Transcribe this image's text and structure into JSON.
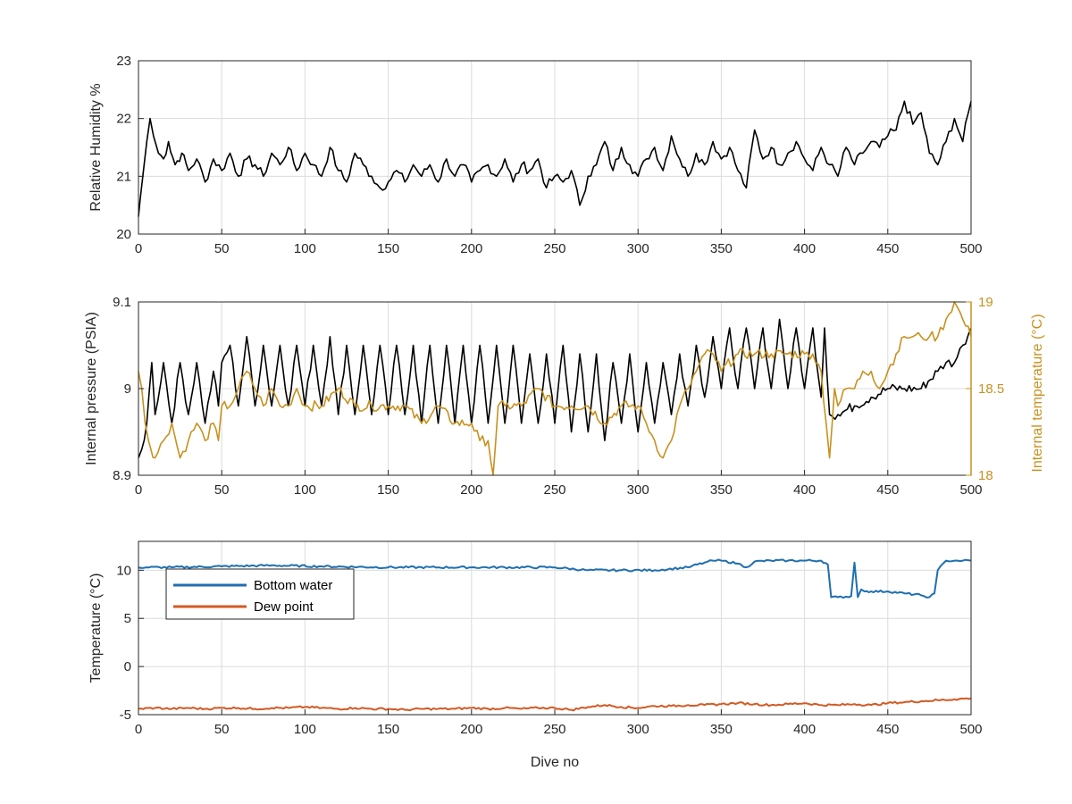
{
  "chart_data": [
    {
      "type": "line",
      "ylabel": "Relative Humidity %",
      "xlim": [
        0,
        500
      ],
      "ylim": [
        20,
        23
      ],
      "xticks": [
        0,
        50,
        100,
        150,
        200,
        250,
        300,
        350,
        400,
        450,
        500
      ],
      "yticks": [
        20,
        21,
        22,
        23
      ],
      "grid": true,
      "series": [
        {
          "color": "#000000",
          "x": [
            0,
            1,
            3,
            5,
            7,
            9,
            12,
            15,
            18,
            22,
            26,
            30,
            35,
            40,
            45,
            50,
            55,
            60,
            65,
            70,
            75,
            80,
            85,
            90,
            95,
            100,
            105,
            110,
            115,
            120,
            125,
            130,
            135,
            140,
            145,
            150,
            155,
            160,
            165,
            170,
            175,
            180,
            185,
            190,
            195,
            200,
            205,
            210,
            215,
            220,
            225,
            230,
            235,
            240,
            245,
            250,
            255,
            260,
            265,
            270,
            275,
            280,
            285,
            290,
            295,
            300,
            305,
            310,
            315,
            320,
            325,
            330,
            335,
            340,
            345,
            350,
            355,
            360,
            365,
            370,
            375,
            380,
            385,
            390,
            395,
            400,
            405,
            410,
            415,
            420,
            425,
            430,
            435,
            440,
            445,
            450,
            455,
            460,
            465,
            470,
            475,
            480,
            485,
            490,
            495,
            500
          ],
          "y": [
            20.3,
            20.6,
            21.1,
            21.6,
            22.0,
            21.7,
            21.4,
            21.3,
            21.6,
            21.2,
            21.4,
            21.1,
            21.3,
            20.9,
            21.3,
            21.1,
            21.4,
            21.0,
            21.3,
            21.2,
            21.0,
            21.4,
            21.2,
            21.5,
            21.1,
            21.4,
            21.2,
            21.0,
            21.5,
            21.1,
            20.9,
            21.4,
            21.2,
            21.0,
            20.8,
            20.9,
            21.1,
            20.9,
            21.2,
            21.0,
            21.2,
            20.9,
            21.3,
            21.0,
            21.2,
            20.9,
            21.1,
            21.2,
            21.0,
            21.3,
            20.9,
            21.2,
            21.1,
            21.3,
            20.8,
            21.0,
            20.9,
            21.1,
            20.5,
            21.0,
            21.2,
            21.6,
            21.1,
            21.5,
            21.2,
            21.0,
            21.3,
            21.5,
            21.1,
            21.7,
            21.3,
            21.0,
            21.4,
            21.2,
            21.6,
            21.3,
            21.5,
            21.1,
            20.8,
            21.8,
            21.3,
            21.5,
            21.2,
            21.4,
            21.6,
            21.3,
            21.1,
            21.5,
            21.2,
            21.0,
            21.5,
            21.2,
            21.4,
            21.6,
            21.5,
            21.7,
            21.8,
            22.3,
            21.9,
            22.1,
            21.4,
            21.2,
            21.6,
            22.0,
            21.6,
            22.3
          ]
        }
      ]
    },
    {
      "type": "line",
      "ylabel": "Internal pressure (PSIA)",
      "y2label": "Internal temperature (°C)",
      "xlim": [
        0,
        500
      ],
      "ylim": [
        8.9,
        9.1
      ],
      "y2lim": [
        18,
        19
      ],
      "xticks": [
        0,
        50,
        100,
        150,
        200,
        250,
        300,
        350,
        400,
        450,
        500
      ],
      "yticks": [
        "8.9",
        "9",
        "9.1"
      ],
      "y2ticks": [
        "18",
        "18.5",
        "19"
      ],
      "grid": true,
      "series": [
        {
          "axis": "left",
          "color": "#000000",
          "x": [
            0,
            2,
            5,
            8,
            10,
            15,
            20,
            25,
            30,
            35,
            40,
            45,
            48,
            50,
            55,
            60,
            65,
            70,
            75,
            80,
            85,
            90,
            95,
            100,
            105,
            110,
            115,
            120,
            125,
            130,
            135,
            140,
            145,
            150,
            155,
            160,
            165,
            170,
            175,
            180,
            185,
            190,
            195,
            200,
            205,
            210,
            215,
            220,
            225,
            230,
            235,
            240,
            245,
            250,
            255,
            260,
            265,
            270,
            275,
            280,
            285,
            290,
            295,
            300,
            305,
            310,
            315,
            320,
            325,
            330,
            335,
            340,
            345,
            350,
            355,
            360,
            365,
            370,
            375,
            380,
            385,
            390,
            395,
            400,
            405,
            410,
            412,
            415,
            420,
            430,
            440,
            450,
            460,
            470,
            480,
            485,
            490,
            495,
            500
          ],
          "y": [
            8.92,
            8.93,
            8.96,
            9.03,
            8.97,
            9.03,
            8.96,
            9.03,
            8.97,
            9.03,
            8.96,
            9.02,
            8.98,
            9.03,
            9.05,
            8.98,
            9.06,
            8.98,
            9.05,
            8.98,
            9.05,
            8.98,
            9.05,
            8.98,
            9.05,
            8.98,
            9.06,
            8.97,
            9.05,
            8.97,
            9.05,
            8.97,
            9.05,
            8.97,
            9.05,
            8.97,
            9.05,
            8.96,
            9.05,
            8.96,
            9.05,
            8.96,
            9.05,
            8.96,
            9.05,
            8.96,
            9.05,
            8.96,
            9.05,
            8.96,
            9.04,
            8.96,
            9.04,
            8.96,
            9.05,
            8.95,
            9.04,
            8.95,
            9.04,
            8.94,
            9.03,
            8.96,
            9.04,
            8.95,
            9.03,
            8.96,
            9.03,
            8.97,
            9.04,
            8.98,
            9.05,
            8.99,
            9.06,
            9.0,
            9.07,
            9.0,
            9.07,
            9.0,
            9.07,
            9.0,
            9.08,
            9.0,
            9.07,
            9.0,
            9.07,
            8.99,
            9.07,
            8.97,
            8.97,
            8.98,
            8.99,
            9.0,
            9.0,
            9.0,
            9.02,
            9.03,
            9.03,
            9.05,
            9.07
          ]
        },
        {
          "axis": "right",
          "color": "#c8911f",
          "x": [
            0,
            2,
            4,
            6,
            10,
            15,
            20,
            25,
            30,
            35,
            40,
            45,
            48,
            50,
            55,
            60,
            65,
            70,
            75,
            80,
            85,
            90,
            95,
            100,
            110,
            120,
            130,
            140,
            150,
            160,
            170,
            180,
            190,
            200,
            205,
            210,
            213,
            216,
            220,
            230,
            240,
            250,
            260,
            270,
            280,
            290,
            300,
            305,
            310,
            315,
            320,
            325,
            330,
            335,
            340,
            345,
            350,
            360,
            370,
            380,
            390,
            400,
            405,
            410,
            413,
            415,
            418,
            420,
            425,
            430,
            435,
            440,
            445,
            450,
            455,
            460,
            465,
            470,
            475,
            480,
            485,
            490,
            495,
            500
          ],
          "y": [
            18.6,
            18.5,
            18.3,
            18.2,
            18.1,
            18.2,
            18.3,
            18.1,
            18.2,
            18.3,
            18.2,
            18.3,
            18.2,
            18.4,
            18.4,
            18.5,
            18.6,
            18.5,
            18.4,
            18.5,
            18.4,
            18.4,
            18.5,
            18.4,
            18.4,
            18.5,
            18.4,
            18.4,
            18.4,
            18.4,
            18.3,
            18.4,
            18.3,
            18.3,
            18.2,
            18.2,
            18.0,
            18.4,
            18.4,
            18.4,
            18.5,
            18.4,
            18.4,
            18.4,
            18.3,
            18.4,
            18.4,
            18.3,
            18.2,
            18.1,
            18.2,
            18.4,
            18.5,
            18.6,
            18.7,
            18.7,
            18.6,
            18.7,
            18.7,
            18.7,
            18.7,
            18.7,
            18.7,
            18.6,
            18.3,
            18.1,
            18.5,
            18.4,
            18.5,
            18.5,
            18.6,
            18.6,
            18.5,
            18.6,
            18.7,
            18.8,
            18.8,
            18.8,
            18.8,
            18.8,
            18.9,
            19.0,
            18.9,
            18.8
          ]
        }
      ]
    },
    {
      "type": "line",
      "xlabel": "Dive no",
      "ylabel": "Temperature (°C)",
      "xlim": [
        0,
        500
      ],
      "ylim": [
        -5,
        13
      ],
      "xticks": [
        0,
        50,
        100,
        150,
        200,
        250,
        300,
        350,
        400,
        450,
        500
      ],
      "yticks": [
        "-5",
        "0",
        "5",
        "10"
      ],
      "grid": true,
      "legend": "top-left",
      "series": [
        {
          "name": "Bottom water",
          "color": "#1f6fb0",
          "x": [
            0,
            20,
            50,
            80,
            110,
            150,
            200,
            250,
            270,
            290,
            310,
            330,
            340,
            345,
            350,
            360,
            365,
            370,
            380,
            390,
            400,
            410,
            414,
            416,
            420,
            428,
            430,
            432,
            434,
            436,
            440,
            450,
            460,
            470,
            475,
            478,
            480,
            485,
            490,
            495,
            500
          ],
          "y": [
            10.3,
            10.3,
            10.4,
            10.5,
            10.4,
            10.3,
            10.3,
            10.3,
            10.0,
            10.0,
            10.0,
            10.3,
            10.8,
            11.0,
            11.0,
            10.7,
            10.3,
            10.9,
            11.0,
            11.0,
            11.0,
            11.0,
            10.6,
            7.2,
            7.2,
            7.3,
            10.8,
            7.2,
            8.0,
            7.8,
            7.8,
            7.8,
            7.6,
            7.4,
            7.2,
            7.6,
            10.0,
            11.0,
            11.0,
            11.0,
            11.0
          ]
        },
        {
          "name": "Dew point",
          "color": "#d35a24",
          "x": [
            0,
            10,
            20,
            30,
            40,
            50,
            60,
            70,
            80,
            90,
            100,
            110,
            120,
            130,
            140,
            150,
            160,
            170,
            180,
            190,
            200,
            210,
            220,
            230,
            240,
            250,
            260,
            270,
            280,
            290,
            300,
            310,
            320,
            330,
            340,
            350,
            360,
            370,
            380,
            390,
            400,
            410,
            420,
            430,
            440,
            450,
            460,
            470,
            480,
            490,
            500
          ],
          "y": [
            -4.4,
            -4.3,
            -4.4,
            -4.3,
            -4.4,
            -4.3,
            -4.3,
            -4.4,
            -4.3,
            -4.3,
            -4.2,
            -4.3,
            -4.4,
            -4.3,
            -4.4,
            -4.4,
            -4.5,
            -4.4,
            -4.4,
            -4.4,
            -4.3,
            -4.4,
            -4.3,
            -4.4,
            -4.3,
            -4.3,
            -4.5,
            -4.2,
            -4.0,
            -4.2,
            -4.3,
            -4.1,
            -4.1,
            -4.0,
            -4.0,
            -3.9,
            -3.8,
            -3.9,
            -4.0,
            -3.9,
            -3.8,
            -4.0,
            -4.0,
            -3.9,
            -4.0,
            -3.8,
            -3.7,
            -3.6,
            -3.5,
            -3.4,
            -3.3
          ]
        }
      ]
    }
  ]
}
